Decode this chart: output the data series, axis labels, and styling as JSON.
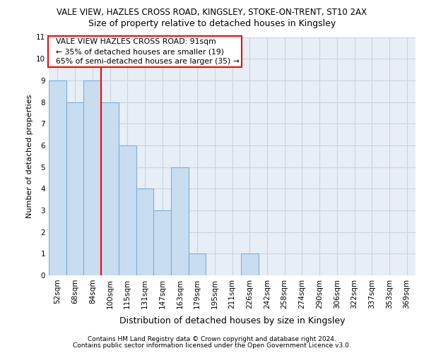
{
  "title1": "VALE VIEW, HAZLES CROSS ROAD, KINGSLEY, STOKE-ON-TRENT, ST10 2AX",
  "title2": "Size of property relative to detached houses in Kingsley",
  "xlabel": "Distribution of detached houses by size in Kingsley",
  "ylabel": "Number of detached properties",
  "footer1": "Contains HM Land Registry data © Crown copyright and database right 2024.",
  "footer2": "Contains public sector information licensed under the Open Government Licence v3.0.",
  "categories": [
    "52sqm",
    "68sqm",
    "84sqm",
    "100sqm",
    "115sqm",
    "131sqm",
    "147sqm",
    "163sqm",
    "179sqm",
    "195sqm",
    "211sqm",
    "226sqm",
    "242sqm",
    "258sqm",
    "274sqm",
    "290sqm",
    "306sqm",
    "322sqm",
    "337sqm",
    "353sqm",
    "369sqm"
  ],
  "values": [
    9,
    8,
    9,
    8,
    6,
    4,
    3,
    5,
    1,
    0,
    0,
    1,
    0,
    0,
    0,
    0,
    0,
    0,
    0,
    0,
    0
  ],
  "bar_color": "#c8ddf0",
  "bar_edge_color": "#7ab0d8",
  "red_line_x": 2.5,
  "annotation_line1": "  VALE VIEW HAZLES CROSS ROAD: 91sqm",
  "annotation_line2": "  ← 35% of detached houses are smaller (19)",
  "annotation_line3": "  65% of semi-detached houses are larger (35) →",
  "ylim": [
    0,
    11
  ],
  "yticks": [
    0,
    1,
    2,
    3,
    4,
    5,
    6,
    7,
    8,
    9,
    10,
    11
  ],
  "grid_color": "#c8d4e0",
  "background_color": "#e8eef6",
  "title1_fontsize": 8.5,
  "title2_fontsize": 9.0,
  "ylabel_fontsize": 8.0,
  "xlabel_fontsize": 9.0,
  "tick_fontsize": 7.5,
  "ann_fontsize": 7.8,
  "footer_fontsize": 6.5
}
